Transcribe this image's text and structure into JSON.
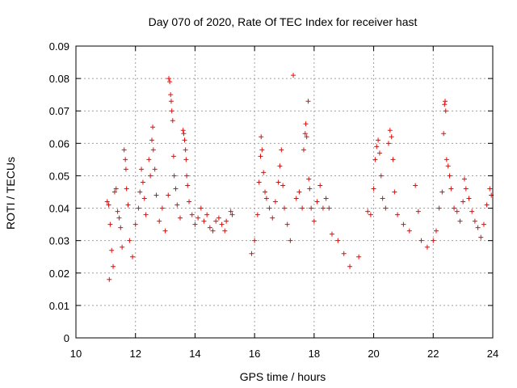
{
  "chart_data": {
    "type": "scatter",
    "title": "Day 070 of 2020, Rate Of TEC Index for receiver hast",
    "xlabel": "GPS time / hours",
    "ylabel": "ROTI / TECUs",
    "xlim": [
      10,
      24
    ],
    "ylim": [
      0,
      0.09
    ],
    "x_ticks": [
      "10",
      "12",
      "14",
      "16",
      "18",
      "20",
      "22",
      "24"
    ],
    "y_ticks": [
      "0",
      "0.01",
      "0.02",
      "0.03",
      "0.04",
      "0.05",
      "0.06",
      "0.07",
      "0.08",
      "0.09"
    ],
    "grid": true,
    "marker": "plus",
    "color": "#ff0000",
    "series": [
      {
        "points": [
          [
            11.05,
            0.042
          ],
          [
            11.1,
            0.041
          ],
          [
            11.15,
            0.035
          ],
          [
            11.12,
            0.018
          ],
          [
            11.2,
            0.027
          ],
          [
            11.25,
            0.022
          ],
          [
            11.3,
            0.045
          ],
          [
            11.35,
            0.046
          ],
          [
            11.4,
            0.039
          ],
          [
            11.45,
            0.037
          ],
          [
            11.5,
            0.034
          ],
          [
            11.55,
            0.028
          ],
          [
            11.62,
            0.058
          ],
          [
            11.66,
            0.055
          ],
          [
            11.68,
            0.052
          ],
          [
            11.7,
            0.046
          ],
          [
            11.75,
            0.041
          ],
          [
            11.8,
            0.03
          ],
          [
            11.9,
            0.025
          ],
          [
            12.0,
            0.035
          ],
          [
            12.1,
            0.04
          ],
          [
            12.15,
            0.045
          ],
          [
            12.2,
            0.052
          ],
          [
            12.25,
            0.048
          ],
          [
            12.3,
            0.043
          ],
          [
            12.35,
            0.038
          ],
          [
            12.45,
            0.055
          ],
          [
            12.5,
            0.05
          ],
          [
            12.55,
            0.061
          ],
          [
            12.58,
            0.065
          ],
          [
            12.6,
            0.058
          ],
          [
            12.65,
            0.052
          ],
          [
            12.7,
            0.044
          ],
          [
            12.8,
            0.036
          ],
          [
            12.9,
            0.04
          ],
          [
            13.0,
            0.033
          ],
          [
            13.1,
            0.044
          ],
          [
            13.12,
            0.08
          ],
          [
            13.15,
            0.079
          ],
          [
            13.18,
            0.075
          ],
          [
            13.2,
            0.073
          ],
          [
            13.22,
            0.07
          ],
          [
            13.25,
            0.067
          ],
          [
            13.28,
            0.056
          ],
          [
            13.3,
            0.05
          ],
          [
            13.35,
            0.046
          ],
          [
            13.4,
            0.041
          ],
          [
            13.5,
            0.037
          ],
          [
            13.6,
            0.064
          ],
          [
            13.62,
            0.063
          ],
          [
            13.65,
            0.061
          ],
          [
            13.68,
            0.058
          ],
          [
            13.7,
            0.055
          ],
          [
            13.72,
            0.05
          ],
          [
            13.75,
            0.047
          ],
          [
            13.8,
            0.042
          ],
          [
            13.9,
            0.038
          ],
          [
            14.0,
            0.035
          ],
          [
            14.1,
            0.037
          ],
          [
            14.2,
            0.04
          ],
          [
            14.3,
            0.036
          ],
          [
            14.4,
            0.038
          ],
          [
            14.5,
            0.034
          ],
          [
            14.6,
            0.033
          ],
          [
            14.7,
            0.036
          ],
          [
            14.8,
            0.037
          ],
          [
            14.9,
            0.035
          ],
          [
            15.0,
            0.033
          ],
          [
            15.05,
            0.036
          ],
          [
            15.2,
            0.039
          ],
          [
            15.25,
            0.038
          ],
          [
            15.9,
            0.026
          ],
          [
            16.0,
            0.03
          ],
          [
            16.1,
            0.038
          ],
          [
            16.15,
            0.048
          ],
          [
            16.2,
            0.056
          ],
          [
            16.22,
            0.062
          ],
          [
            16.25,
            0.058
          ],
          [
            16.3,
            0.051
          ],
          [
            16.35,
            0.045
          ],
          [
            16.4,
            0.043
          ],
          [
            16.5,
            0.04
          ],
          [
            16.6,
            0.037
          ],
          [
            16.7,
            0.042
          ],
          [
            16.8,
            0.048
          ],
          [
            16.85,
            0.053
          ],
          [
            16.9,
            0.058
          ],
          [
            16.95,
            0.047
          ],
          [
            17.0,
            0.04
          ],
          [
            17.1,
            0.035
          ],
          [
            17.2,
            0.03
          ],
          [
            17.3,
            0.081
          ],
          [
            17.4,
            0.043
          ],
          [
            17.5,
            0.045
          ],
          [
            17.6,
            0.04
          ],
          [
            17.65,
            0.058
          ],
          [
            17.7,
            0.063
          ],
          [
            17.72,
            0.066
          ],
          [
            17.75,
            0.062
          ],
          [
            17.8,
            0.073
          ],
          [
            17.82,
            0.049
          ],
          [
            17.85,
            0.046
          ],
          [
            17.9,
            0.04
          ],
          [
            18.0,
            0.036
          ],
          [
            18.1,
            0.042
          ],
          [
            18.2,
            0.047
          ],
          [
            18.3,
            0.04
          ],
          [
            18.4,
            0.043
          ],
          [
            18.5,
            0.04
          ],
          [
            18.6,
            0.032
          ],
          [
            18.8,
            0.03
          ],
          [
            19.0,
            0.026
          ],
          [
            19.2,
            0.022
          ],
          [
            19.5,
            0.025
          ],
          [
            19.8,
            0.039
          ],
          [
            19.9,
            0.038
          ],
          [
            20.0,
            0.046
          ],
          [
            20.05,
            0.055
          ],
          [
            20.1,
            0.059
          ],
          [
            20.15,
            0.061
          ],
          [
            20.2,
            0.057
          ],
          [
            20.25,
            0.05
          ],
          [
            20.3,
            0.043
          ],
          [
            20.4,
            0.04
          ],
          [
            20.5,
            0.06
          ],
          [
            20.55,
            0.064
          ],
          [
            20.6,
            0.062
          ],
          [
            20.65,
            0.055
          ],
          [
            20.7,
            0.045
          ],
          [
            20.8,
            0.038
          ],
          [
            21.0,
            0.035
          ],
          [
            21.2,
            0.033
          ],
          [
            21.4,
            0.047
          ],
          [
            21.5,
            0.039
          ],
          [
            21.6,
            0.03
          ],
          [
            21.8,
            0.028
          ],
          [
            22.0,
            0.03
          ],
          [
            22.1,
            0.033
          ],
          [
            22.2,
            0.04
          ],
          [
            22.3,
            0.045
          ],
          [
            22.35,
            0.063
          ],
          [
            22.38,
            0.072
          ],
          [
            22.4,
            0.073
          ],
          [
            22.42,
            0.07
          ],
          [
            22.45,
            0.055
          ],
          [
            22.5,
            0.053
          ],
          [
            22.55,
            0.05
          ],
          [
            22.6,
            0.046
          ],
          [
            22.7,
            0.04
          ],
          [
            22.8,
            0.039
          ],
          [
            22.9,
            0.036
          ],
          [
            23.0,
            0.042
          ],
          [
            23.05,
            0.049
          ],
          [
            23.1,
            0.046
          ],
          [
            23.2,
            0.043
          ],
          [
            23.3,
            0.039
          ],
          [
            23.4,
            0.036
          ],
          [
            23.5,
            0.034
          ],
          [
            23.6,
            0.031
          ],
          [
            23.7,
            0.035
          ],
          [
            23.8,
            0.041
          ],
          [
            23.9,
            0.046
          ],
          [
            23.95,
            0.044
          ]
        ]
      }
    ]
  }
}
